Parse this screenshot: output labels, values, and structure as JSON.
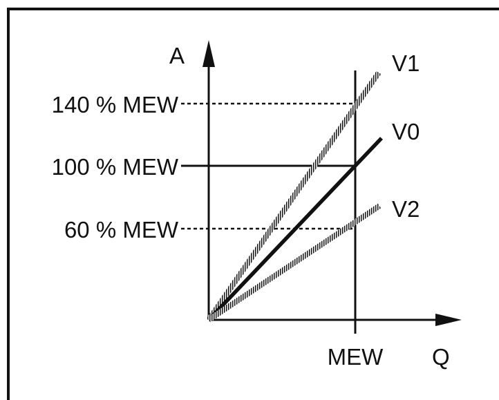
{
  "axes": {
    "y_label": "A",
    "x_label": "Q"
  },
  "levels": [
    {
      "label": "140 % MEW",
      "style": "dashed"
    },
    {
      "label": "100 % MEW",
      "style": "solid"
    },
    {
      "label": "60 % MEW",
      "style": "dashed"
    }
  ],
  "x_marker": {
    "label": "MEW"
  },
  "lines": [
    {
      "label": "V1",
      "style": "dashed",
      "relative_value_at_mew": 1.4
    },
    {
      "label": "V0",
      "style": "solid",
      "relative_value_at_mew": 1.0
    },
    {
      "label": "V2",
      "style": "dashed",
      "relative_value_at_mew": 0.6
    }
  ],
  "colors": {
    "ink": "#111111",
    "background": "#ffffff"
  }
}
